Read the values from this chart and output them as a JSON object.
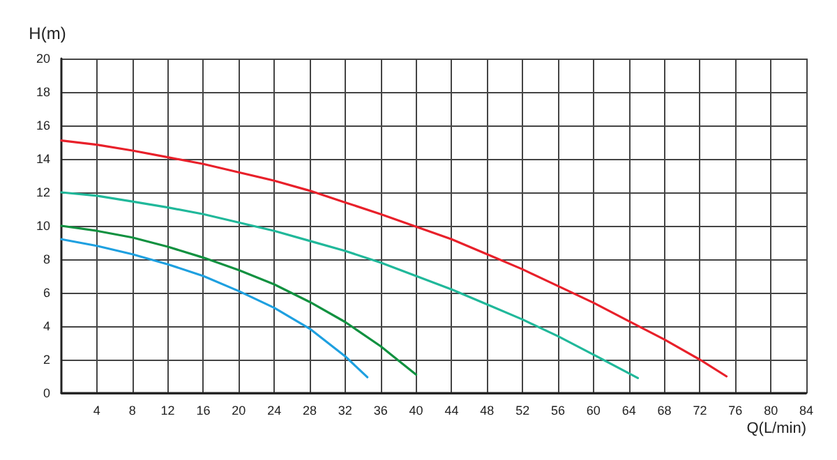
{
  "chart_data": {
    "type": "line",
    "xlabel": "Q(L/min)",
    "ylabel": "H(m)",
    "xlim": [
      0,
      84
    ],
    "xticks": [
      4,
      8,
      12,
      16,
      20,
      24,
      28,
      32,
      36,
      40,
      44,
      48,
      52,
      56,
      60,
      64,
      68,
      72,
      76,
      80,
      84
    ],
    "ylim": [
      0,
      20
    ],
    "yticks": [
      0,
      2,
      4,
      6,
      8,
      10,
      12,
      14,
      16,
      18,
      20
    ],
    "grid": true,
    "marker": "none",
    "line_style": "solid",
    "series": [
      {
        "color": "#e8202a",
        "x": [
          0,
          4,
          8,
          12,
          16,
          20,
          24,
          28,
          32,
          36,
          40,
          44,
          48,
          52,
          56,
          60,
          64,
          68,
          72,
          75
        ],
        "values": [
          15.1,
          14.85,
          14.5,
          14.1,
          13.7,
          13.2,
          12.7,
          12.1,
          11.4,
          10.7,
          9.95,
          9.2,
          8.3,
          7.4,
          6.4,
          5.4,
          4.3,
          3.2,
          2.0,
          1.0
        ]
      },
      {
        "color": "#20b89a",
        "x": [
          0,
          4,
          8,
          12,
          16,
          20,
          24,
          28,
          32,
          36,
          40,
          44,
          48,
          52,
          56,
          60,
          65
        ],
        "values": [
          12,
          11.8,
          11.45,
          11.1,
          10.7,
          10.2,
          9.7,
          9.1,
          8.5,
          7.8,
          7.0,
          6.2,
          5.3,
          4.4,
          3.4,
          2.3,
          0.9
        ]
      },
      {
        "color": "#119140",
        "x": [
          0,
          4,
          8,
          12,
          16,
          20,
          24,
          28,
          32,
          36,
          40
        ],
        "values": [
          10,
          9.7,
          9.3,
          8.75,
          8.1,
          7.35,
          6.5,
          5.45,
          4.25,
          2.8,
          1.1
        ]
      },
      {
        "color": "#1ea0e0",
        "x": [
          0,
          4,
          8,
          12,
          16,
          20,
          24,
          28,
          32,
          34.5
        ],
        "values": [
          9.2,
          8.8,
          8.3,
          7.7,
          7.0,
          6.1,
          5.1,
          3.85,
          2.2,
          0.95
        ]
      }
    ]
  }
}
